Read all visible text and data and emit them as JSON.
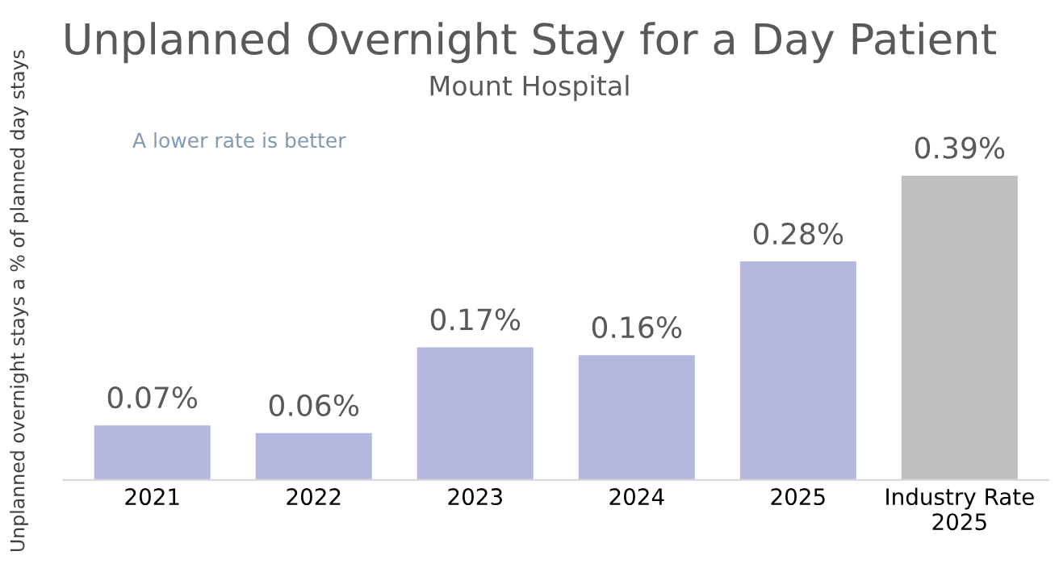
{
  "chart_data": {
    "type": "bar",
    "title": "Unplanned Overnight Stay for a Day Patient",
    "subtitle": "Mount Hospital",
    "ylabel": "Unplanned overnight stays a % of planned day stays",
    "annotations": [
      "A lower rate is better"
    ],
    "categories": [
      "2021",
      "2022",
      "2023",
      "2024",
      "2025",
      "Industry Rate\n2025"
    ],
    "values": [
      0.07,
      0.06,
      0.17,
      0.16,
      0.28,
      0.39
    ],
    "colors": [
      "#b4b8de",
      "#b4b8de",
      "#b4b8de",
      "#b4b8de",
      "#b4b8de",
      "#bfbfbf"
    ],
    "value_labels": [
      "0.07%",
      "0.06%",
      "0.17%",
      "0.16%",
      "0.28%",
      "0.39%"
    ],
    "grid": false,
    "legend": false,
    "tick_labels": "x"
  }
}
